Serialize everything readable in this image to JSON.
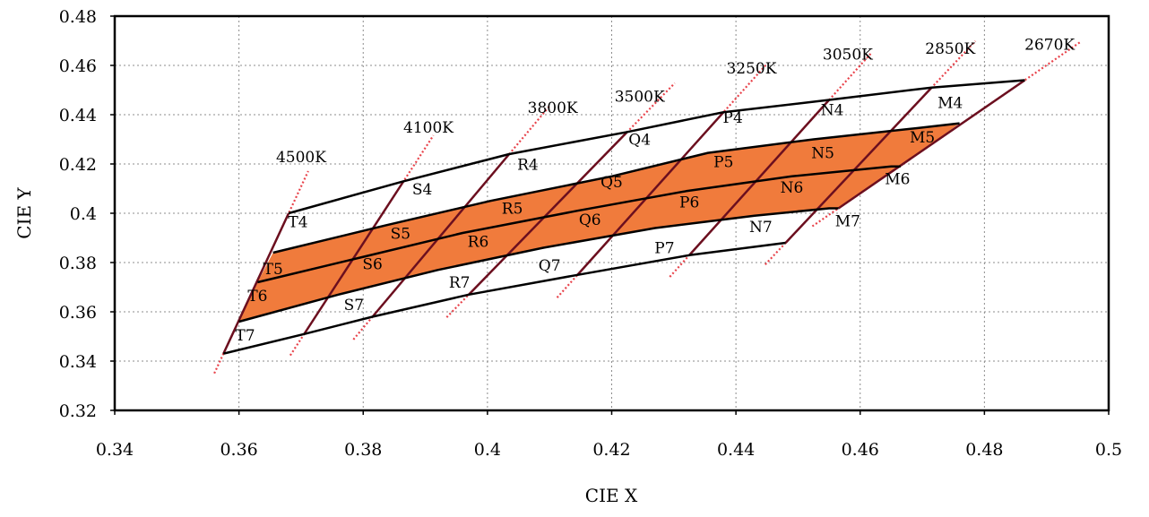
{
  "colors": {
    "fill": "#f07b3c",
    "outline": "#000000",
    "cct_line": "#6b0f1f",
    "cct_extension": "#e8424a",
    "grid": "#8c8c8c"
  },
  "chart_data": {
    "type": "line",
    "title": "",
    "xlabel": "CIE X",
    "ylabel": "CIE Y",
    "xlim": [
      0.34,
      0.5
    ],
    "ylim": [
      0.32,
      0.48
    ],
    "xticks": [
      0.34,
      0.36,
      0.38,
      0.4,
      0.42,
      0.44,
      0.46,
      0.48,
      0.5
    ],
    "xtick_labels": [
      "0.34",
      "0.36",
      "0.38",
      "0.4",
      "0.42",
      "0.44",
      "0.46",
      "0.48",
      "0.5"
    ],
    "yticks": [
      0.32,
      0.34,
      0.36,
      0.38,
      0.4,
      0.42,
      0.44,
      0.46,
      0.48
    ],
    "ytick_labels": [
      "0.32",
      "0.34",
      "0.36",
      "0.38",
      "0.4",
      "0.42",
      "0.44",
      "0.46",
      "0.48"
    ],
    "grid": "dotted",
    "cct_lines": [
      {
        "label": "4500K",
        "bottom": [
          0.3575,
          0.343
        ],
        "top": [
          0.368,
          0.4
        ],
        "label_pos": [
          0.37,
          0.423
        ]
      },
      {
        "label": "4100K",
        "bottom": [
          0.3705,
          0.351
        ],
        "top": [
          0.3865,
          0.413
        ],
        "label_pos": [
          0.3905,
          0.435
        ]
      },
      {
        "label": "3800K",
        "bottom": [
          0.3815,
          0.358
        ],
        "top": [
          0.4035,
          0.424
        ],
        "label_pos": [
          0.4105,
          0.443
        ]
      },
      {
        "label": "3500K",
        "bottom": [
          0.397,
          0.367
        ],
        "top": [
          0.4225,
          0.433
        ],
        "label_pos": [
          0.4245,
          0.4475
        ]
      },
      {
        "label": "3250K",
        "bottom": [
          0.4145,
          0.375
        ],
        "top": [
          0.438,
          0.441
        ],
        "label_pos": [
          0.4425,
          0.459
        ]
      },
      {
        "label": "3050K",
        "bottom": [
          0.4325,
          0.383
        ],
        "top": [
          0.455,
          0.446
        ],
        "label_pos": [
          0.458,
          0.4645
        ]
      },
      {
        "label": "2850K",
        "bottom": [
          0.448,
          0.388
        ],
        "top": [
          0.4715,
          0.451
        ],
        "label_pos": [
          0.4745,
          0.467
        ]
      },
      {
        "label": "2670K",
        "bottom": [
          0.4565,
          0.402
        ],
        "top": [
          0.4865,
          0.454
        ],
        "label_pos": [
          0.4905,
          0.4685
        ]
      }
    ],
    "band_boundaries": {
      "top": [
        [
          0.368,
          0.4
        ],
        [
          0.3865,
          0.413
        ],
        [
          0.4035,
          0.424
        ],
        [
          0.4225,
          0.433
        ],
        [
          0.438,
          0.441
        ],
        [
          0.455,
          0.446
        ],
        [
          0.4715,
          0.451
        ],
        [
          0.4865,
          0.454
        ]
      ],
      "upper_mid": [
        [
          0.3655,
          0.384
        ],
        [
          0.3835,
          0.395
        ],
        [
          0.4005,
          0.405
        ],
        [
          0.42,
          0.415
        ],
        [
          0.4355,
          0.4245
        ],
        [
          0.4525,
          0.43
        ],
        [
          0.469,
          0.4345
        ],
        [
          0.476,
          0.4365
        ]
      ],
      "middle": [
        [
          0.363,
          0.372
        ],
        [
          0.3795,
          0.382
        ],
        [
          0.396,
          0.392
        ],
        [
          0.4145,
          0.401
        ],
        [
          0.432,
          0.409
        ],
        [
          0.449,
          0.415
        ],
        [
          0.465,
          0.419
        ],
        [
          0.4665,
          0.419
        ]
      ],
      "lower_mid": [
        [
          0.36,
          0.356
        ],
        [
          0.376,
          0.367
        ],
        [
          0.392,
          0.377
        ],
        [
          0.409,
          0.386
        ],
        [
          0.427,
          0.394
        ],
        [
          0.443,
          0.399
        ],
        [
          0.455,
          0.402
        ],
        [
          0.4565,
          0.402
        ]
      ],
      "bottom": [
        [
          0.3575,
          0.343
        ],
        [
          0.3705,
          0.351
        ],
        [
          0.3815,
          0.358
        ],
        [
          0.397,
          0.367
        ],
        [
          0.4145,
          0.375
        ],
        [
          0.4325,
          0.383
        ],
        [
          0.448,
          0.388
        ],
        [
          0.448,
          0.388
        ]
      ]
    },
    "filled_bands": [
      "upper_mid-middle",
      "middle-lower_mid"
    ],
    "bin_labels": [
      {
        "text": "T4",
        "pos": [
          0.3695,
          0.3965
        ]
      },
      {
        "text": "T5",
        "pos": [
          0.3655,
          0.3775
        ]
      },
      {
        "text": "T6",
        "pos": [
          0.363,
          0.3665
        ]
      },
      {
        "text": "T7",
        "pos": [
          0.361,
          0.3505
        ]
      },
      {
        "text": "S4",
        "pos": [
          0.3895,
          0.4098
        ]
      },
      {
        "text": "S5",
        "pos": [
          0.386,
          0.3918
        ]
      },
      {
        "text": "S6",
        "pos": [
          0.3815,
          0.3795
        ]
      },
      {
        "text": "S7",
        "pos": [
          0.3785,
          0.363
        ]
      },
      {
        "text": "R4",
        "pos": [
          0.4065,
          0.4198
        ]
      },
      {
        "text": "R5",
        "pos": [
          0.404,
          0.402
        ]
      },
      {
        "text": "R6",
        "pos": [
          0.3985,
          0.3885
        ]
      },
      {
        "text": "R7",
        "pos": [
          0.3955,
          0.372
        ]
      },
      {
        "text": "Q4",
        "pos": [
          0.4245,
          0.43
        ]
      },
      {
        "text": "Q5",
        "pos": [
          0.42,
          0.4128
        ]
      },
      {
        "text": "Q6",
        "pos": [
          0.4165,
          0.3975
        ]
      },
      {
        "text": "Q7",
        "pos": [
          0.41,
          0.379
        ]
      },
      {
        "text": "P4",
        "pos": [
          0.4395,
          0.439
        ]
      },
      {
        "text": "P5",
        "pos": [
          0.438,
          0.421
        ]
      },
      {
        "text": "P6",
        "pos": [
          0.4325,
          0.4045
        ]
      },
      {
        "text": "P7",
        "pos": [
          0.4285,
          0.386
        ]
      },
      {
        "text": "N4",
        "pos": [
          0.4555,
          0.442
        ]
      },
      {
        "text": "N5",
        "pos": [
          0.454,
          0.4245
        ]
      },
      {
        "text": "N6",
        "pos": [
          0.449,
          0.4105
        ]
      },
      {
        "text": "N7",
        "pos": [
          0.444,
          0.3945
        ]
      },
      {
        "text": "M4",
        "pos": [
          0.4745,
          0.445
        ]
      },
      {
        "text": "M5",
        "pos": [
          0.47,
          0.431
        ]
      },
      {
        "text": "M6",
        "pos": [
          0.466,
          0.414
        ]
      },
      {
        "text": "M7",
        "pos": [
          0.458,
          0.397
        ]
      }
    ]
  }
}
